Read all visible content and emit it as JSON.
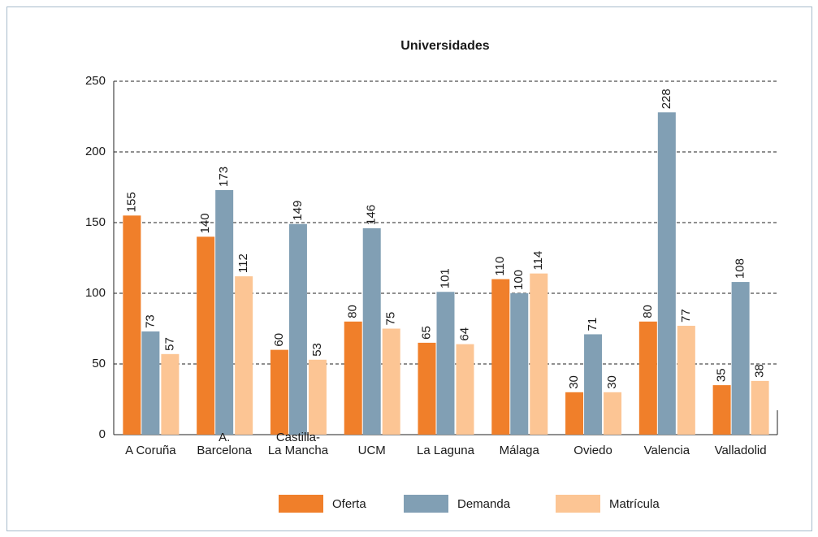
{
  "chart_data": {
    "type": "bar",
    "title": "Universidades",
    "categories": [
      "A Coruña",
      "A.\nBarcelona",
      "Castilla-\nLa Mancha",
      "UCM",
      "La Laguna",
      "Málaga",
      "Oviedo",
      "Valencia",
      "Valladolid"
    ],
    "series": [
      {
        "name": "Oferta",
        "color": "#f07f2a",
        "values": [
          155,
          140,
          60,
          80,
          65,
          110,
          30,
          80,
          35
        ]
      },
      {
        "name": "Demanda",
        "color": "#819fb4",
        "values": [
          73,
          173,
          149,
          146,
          101,
          100,
          71,
          228,
          108
        ]
      },
      {
        "name": "Matrícula",
        "color": "#fcc594",
        "values": [
          57,
          112,
          53,
          75,
          64,
          114,
          30,
          77,
          38
        ]
      }
    ],
    "ylim": [
      0,
      250
    ],
    "yticks": [
      0,
      50,
      100,
      150,
      200,
      250
    ],
    "grid": true,
    "legend": "bottom"
  }
}
